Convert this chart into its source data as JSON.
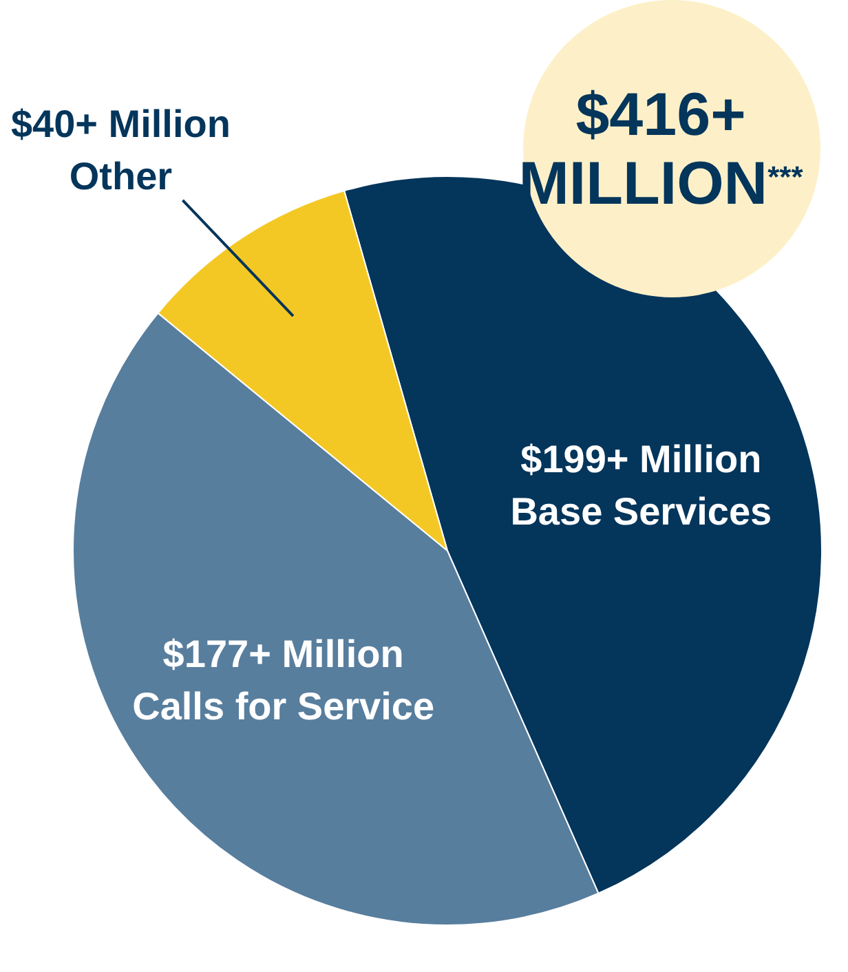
{
  "chart_data": {
    "type": "pie",
    "categories": [
      "Base Services",
      "Calls for Service",
      "Other"
    ],
    "values": [
      199,
      177,
      40
    ],
    "colors": [
      "#04355b",
      "#587e9e",
      "#f4c824"
    ],
    "value_labels": [
      "$199+ Million",
      "$177+ Million",
      "$40+ Million"
    ],
    "annotations": [
      "$416+ MILLION$^{***}$"
    ]
  }
}
